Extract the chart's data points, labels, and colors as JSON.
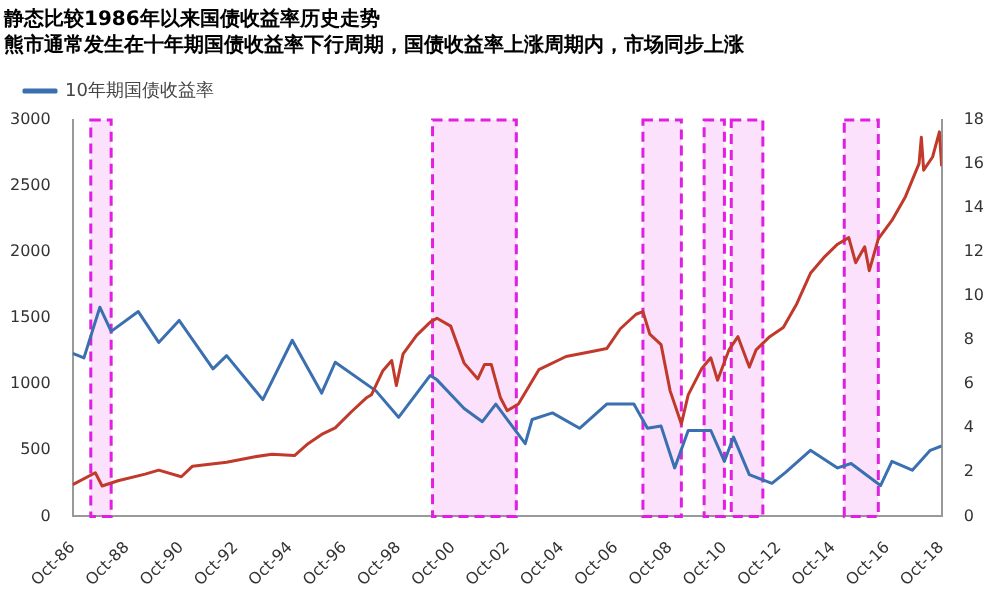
{
  "chart_data": {
    "type": "line",
    "title": "静态比较1986年以来国债收益率历史走势",
    "subtitle": "熊市通常发生在十年期国债收益率下行周期，国债收益率上涨周期内，市场同步上涨",
    "xlim": [
      "1986-10",
      "2018-10"
    ],
    "xticks": [
      {
        "value": "1986-10",
        "label": "Oct-86"
      },
      {
        "value": "1988-10",
        "label": "Oct-88"
      },
      {
        "value": "1990-10",
        "label": "Oct-90"
      },
      {
        "value": "1992-10",
        "label": "Oct-92"
      },
      {
        "value": "1994-10",
        "label": "Oct-94"
      },
      {
        "value": "1996-10",
        "label": "Oct-96"
      },
      {
        "value": "1998-10",
        "label": "Oct-98"
      },
      {
        "value": "2000-10",
        "label": "Oct-00"
      },
      {
        "value": "2002-10",
        "label": "Oct-02"
      },
      {
        "value": "2004-10",
        "label": "Oct-04"
      },
      {
        "value": "2006-10",
        "label": "Oct-06"
      },
      {
        "value": "2008-10",
        "label": "Oct-08"
      },
      {
        "value": "2010-10",
        "label": "Oct-10"
      },
      {
        "value": "2012-10",
        "label": "Oct-12"
      },
      {
        "value": "2014-10",
        "label": "Oct-14"
      },
      {
        "value": "2016-10",
        "label": "Oct-16"
      },
      {
        "value": "2018-10",
        "label": "Oct-18"
      }
    ],
    "ylim": [
      0,
      3000
    ],
    "yticks": [
      0,
      500,
      1000,
      1500,
      2000,
      2500,
      3000
    ],
    "y2lim": [
      0,
      18
    ],
    "y2ticks": [
      0,
      2,
      4,
      6,
      8,
      10,
      12,
      14,
      16,
      18
    ],
    "grid": false,
    "legend": "top left",
    "marker": "none",
    "series": [
      {
        "color": "#c0392b",
        "x": [
          "1986-10",
          "1987-08",
          "1987-11",
          "1988-06",
          "1989-06",
          "1989-12",
          "1990-10",
          "1991-03",
          "1992-06",
          "1993-06",
          "1994-02",
          "1994-12",
          "1995-06",
          "1995-12",
          "1996-06",
          "1997-01",
          "1997-08",
          "1997-10",
          "1998-03",
          "1998-07",
          "1998-09",
          "1998-12",
          "1999-06",
          "1999-12",
          "2000-03",
          "2000-09",
          "2001-03",
          "2001-09",
          "2001-12",
          "2002-03",
          "2002-07",
          "2002-10",
          "2003-03",
          "2003-12",
          "2004-12",
          "2005-12",
          "2006-06",
          "2006-12",
          "2007-07",
          "2007-10",
          "2008-01",
          "2008-06",
          "2008-10",
          "2009-03",
          "2009-06",
          "2009-12",
          "2010-04",
          "2010-07",
          "2010-12",
          "2011-04",
          "2011-09",
          "2011-12",
          "2012-06",
          "2012-12",
          "2013-06",
          "2013-12",
          "2014-06",
          "2014-12",
          "2015-05",
          "2015-08",
          "2015-12",
          "2016-02",
          "2016-06",
          "2016-12",
          "2017-06",
          "2017-12",
          "2018-01",
          "2018-02",
          "2018-06",
          "2018-09",
          "2018-10"
        ],
        "values": [
          240,
          330,
          230,
          270,
          320,
          350,
          300,
          380,
          410,
          450,
          470,
          460,
          550,
          620,
          670,
          790,
          900,
          920,
          1100,
          1180,
          990,
          1230,
          1370,
          1470,
          1500,
          1440,
          1160,
          1040,
          1150,
          1150,
          900,
          800,
          850,
          1110,
          1210,
          1250,
          1270,
          1420,
          1530,
          1550,
          1380,
          1300,
          950,
          700,
          920,
          1120,
          1200,
          1030,
          1260,
          1360,
          1130,
          1260,
          1360,
          1430,
          1610,
          1840,
          1960,
          2060,
          2110,
          1920,
          2040,
          1860,
          2100,
          2240,
          2420,
          2670,
          2870,
          2620,
          2720,
          2910,
          2650
        ]
      },
      {
        "name": "10年期国债收益率",
        "color": "#3a6fb0",
        "axis": "y2",
        "x": [
          "1986-10",
          "1987-03",
          "1987-10",
          "1988-03",
          "1989-03",
          "1989-12",
          "1990-09",
          "1991-12",
          "1992-06",
          "1993-10",
          "1994-11",
          "1995-12",
          "1996-06",
          "1997-12",
          "1998-10",
          "1999-12",
          "2000-03",
          "2001-03",
          "2001-11",
          "2002-05",
          "2003-06",
          "2003-09",
          "2004-06",
          "2005-06",
          "2006-06",
          "2007-06",
          "2007-12",
          "2008-06",
          "2008-12",
          "2009-06",
          "2010-04",
          "2010-10",
          "2011-02",
          "2011-09",
          "2012-07",
          "2013-01",
          "2013-12",
          "2014-12",
          "2015-06",
          "2016-07",
          "2016-12",
          "2017-09",
          "2018-05",
          "2018-10"
        ],
        "values": [
          7.4,
          7.2,
          9.5,
          8.4,
          9.3,
          7.9,
          8.9,
          6.7,
          7.3,
          5.3,
          8.0,
          5.6,
          7.0,
          5.7,
          4.5,
          6.4,
          6.2,
          4.9,
          4.3,
          5.1,
          3.3,
          4.4,
          4.7,
          4.0,
          5.1,
          5.1,
          4.0,
          4.1,
          2.2,
          3.9,
          3.9,
          2.5,
          3.6,
          1.9,
          1.5,
          2.0,
          3.0,
          2.2,
          2.4,
          1.4,
          2.5,
          2.1,
          3.0,
          3.2
        ]
      }
    ],
    "bands": [
      {
        "axis": "x",
        "from": "1987-06",
        "to": "1988-03",
        "color": "#e020e0"
      },
      {
        "axis": "x",
        "from": "2000-01",
        "to": "2003-02",
        "color": "#e020e0"
      },
      {
        "axis": "x",
        "from": "2007-10",
        "to": "2009-03",
        "color": "#e020e0"
      },
      {
        "axis": "x",
        "from": "2010-01",
        "to": "2010-10",
        "color": "#e020e0"
      },
      {
        "axis": "x",
        "from": "2011-01",
        "to": "2012-03",
        "color": "#e020e0"
      },
      {
        "axis": "x",
        "from": "2015-03",
        "to": "2016-06",
        "color": "#e020e0"
      }
    ]
  }
}
